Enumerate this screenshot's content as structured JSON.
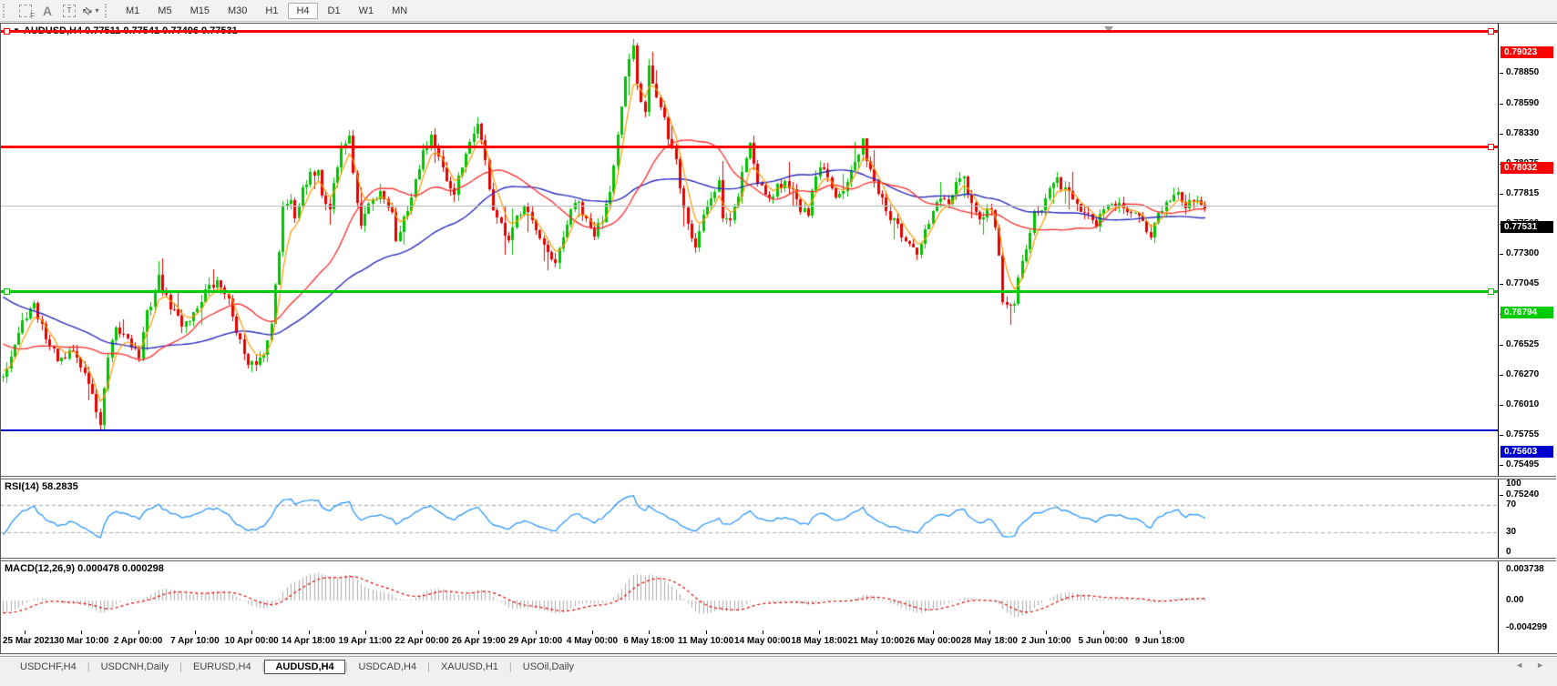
{
  "toolbar": {
    "tools": [
      {
        "id": "marquee-f",
        "label": "F"
      },
      {
        "id": "text-label",
        "label": "A"
      },
      {
        "id": "text-box",
        "label": "T"
      },
      {
        "id": "cursor",
        "label": "⇄",
        "caret": "▾"
      }
    ],
    "timeframes": [
      "M1",
      "M5",
      "M15",
      "M30",
      "H1",
      "H4",
      "D1",
      "W1",
      "MN"
    ],
    "active_timeframe": "H4"
  },
  "chart": {
    "title": "AUDUSD,H4 0.77511 0.77541 0.77496 0.77531",
    "symbol": "AUDUSD",
    "period": "H4",
    "ohlc": {
      "open": "0.77511",
      "high": "0.77541",
      "low": "0.77496",
      "close": "0.77531"
    }
  },
  "chart_data": {
    "type": "candlestick",
    "symbol": "AUDUSD",
    "timeframe": "H4",
    "title": "AUDUSD,H4 0.77511 0.77541 0.77496 0.77531",
    "candle_count": 310,
    "up_color": "#00C400",
    "down_color": "#E60000",
    "price_axis_ticks": [
      "0.78850",
      "0.78590",
      "0.78330",
      "0.78075",
      "0.77815",
      "0.77560",
      "0.77300",
      "0.77045",
      "0.76790",
      "0.76525",
      "0.76270",
      "0.76010",
      "0.75755",
      "0.75495",
      "0.75240"
    ],
    "price_range_top": 0.7907,
    "price_range_bottom": 0.75217,
    "levels": [
      {
        "label": "0.79023",
        "price": 0.79023,
        "color": "#FF0000",
        "thickness": 3,
        "marker_left": true,
        "marker_right": true
      },
      {
        "label": "0.78032",
        "price": 0.78032,
        "color": "#FF0000",
        "thickness": 3,
        "marker_left": false,
        "marker_right": true
      },
      {
        "label": "0.76794",
        "price": 0.76794,
        "color": "#00CC00",
        "thickness": 3,
        "marker_left": true,
        "marker_right": true
      },
      {
        "label": "0.75603",
        "price": 0.75603,
        "color": "#0000CC",
        "thickness": 2,
        "marker_left": false,
        "marker_right": false
      }
    ],
    "current_price": {
      "label": "0.77531",
      "price": 0.77531,
      "label_bg": "#000000",
      "line_color": "#C0C0C0"
    },
    "moving_averages": [
      {
        "name": "fast",
        "type": "ema",
        "period": 5,
        "color": "#FF9900"
      },
      {
        "name": "medium",
        "type": "sma",
        "period": 25,
        "color": "#FF2A2A"
      },
      {
        "name": "slow",
        "type": "sma",
        "period": 60,
        "color": "#2B2BC0"
      }
    ],
    "price_path_anchors": [
      [
        0,
        0.761
      ],
      [
        2,
        0.7625
      ],
      [
        6,
        0.766
      ],
      [
        8,
        0.7666
      ],
      [
        12,
        0.7633
      ],
      [
        15,
        0.7618
      ],
      [
        18,
        0.7629
      ],
      [
        22,
        0.7602
      ],
      [
        25,
        0.7566
      ],
      [
        27,
        0.7621
      ],
      [
        29,
        0.7645
      ],
      [
        32,
        0.7641
      ],
      [
        35,
        0.7624
      ],
      [
        37,
        0.766
      ],
      [
        40,
        0.7691
      ],
      [
        42,
        0.7672
      ],
      [
        46,
        0.7652
      ],
      [
        49,
        0.766
      ],
      [
        52,
        0.768
      ],
      [
        55,
        0.7686
      ],
      [
        57,
        0.7681
      ],
      [
        60,
        0.7648
      ],
      [
        63,
        0.7613
      ],
      [
        65,
        0.7619
      ],
      [
        67,
        0.7625
      ],
      [
        69,
        0.7656
      ],
      [
        71,
        0.7711
      ],
      [
        72,
        0.7754
      ],
      [
        74,
        0.7759
      ],
      [
        75,
        0.7746
      ],
      [
        77,
        0.7764
      ],
      [
        79,
        0.7777
      ],
      [
        81,
        0.7786
      ],
      [
        82,
        0.7761
      ],
      [
        84,
        0.7751
      ],
      [
        85,
        0.7773
      ],
      [
        87,
        0.78
      ],
      [
        89,
        0.7814
      ],
      [
        90,
        0.7777
      ],
      [
        92,
        0.7736
      ],
      [
        94,
        0.7754
      ],
      [
        96,
        0.7761
      ],
      [
        97,
        0.7767
      ],
      [
        100,
        0.7746
      ],
      [
        101,
        0.7725
      ],
      [
        104,
        0.775
      ],
      [
        106,
        0.7777
      ],
      [
        108,
        0.78
      ],
      [
        110,
        0.7814
      ],
      [
        112,
        0.7793
      ],
      [
        114,
        0.7771
      ],
      [
        116,
        0.7765
      ],
      [
        118,
        0.7785
      ],
      [
        120,
        0.7804
      ],
      [
        122,
        0.7826
      ],
      [
        124,
        0.7789
      ],
      [
        126,
        0.775
      ],
      [
        128,
        0.7734
      ],
      [
        130,
        0.772
      ],
      [
        132,
        0.7742
      ],
      [
        134,
        0.7756
      ],
      [
        135,
        0.775
      ],
      [
        137,
        0.773
      ],
      [
        139,
        0.7715
      ],
      [
        142,
        0.7701
      ],
      [
        144,
        0.7725
      ],
      [
        146,
        0.775
      ],
      [
        148,
        0.7754
      ],
      [
        150,
        0.7738
      ],
      [
        152,
        0.7728
      ],
      [
        154,
        0.7742
      ],
      [
        156,
        0.7769
      ],
      [
        158,
        0.7812
      ],
      [
        160,
        0.7859
      ],
      [
        162,
        0.789
      ],
      [
        163,
        0.7855
      ],
      [
        165,
        0.7835
      ],
      [
        166,
        0.7876
      ],
      [
        168,
        0.7847
      ],
      [
        170,
        0.7828
      ],
      [
        171,
        0.7808
      ],
      [
        173,
        0.779
      ],
      [
        175,
        0.775
      ],
      [
        177,
        0.7725
      ],
      [
        178,
        0.7717
      ],
      [
        180,
        0.7746
      ],
      [
        182,
        0.7761
      ],
      [
        184,
        0.7775
      ],
      [
        185,
        0.7744
      ],
      [
        187,
        0.774
      ],
      [
        189,
        0.7761
      ],
      [
        190,
        0.7785
      ],
      [
        192,
        0.781
      ],
      [
        193,
        0.7785
      ],
      [
        195,
        0.7767
      ],
      [
        197,
        0.7759
      ],
      [
        199,
        0.7769
      ],
      [
        201,
        0.7775
      ],
      [
        203,
        0.7765
      ],
      [
        205,
        0.7751
      ],
      [
        207,
        0.7742
      ],
      [
        208,
        0.7765
      ],
      [
        210,
        0.7785
      ],
      [
        212,
        0.7777
      ],
      [
        214,
        0.7764
      ],
      [
        216,
        0.7769
      ],
      [
        218,
        0.7782
      ],
      [
        220,
        0.7796
      ],
      [
        221,
        0.7806
      ],
      [
        223,
        0.7785
      ],
      [
        225,
        0.7765
      ],
      [
        227,
        0.7748
      ],
      [
        229,
        0.7738
      ],
      [
        231,
        0.7728
      ],
      [
        233,
        0.7717
      ],
      [
        235,
        0.7709
      ],
      [
        237,
        0.773
      ],
      [
        239,
        0.7748
      ],
      [
        241,
        0.7759
      ],
      [
        243,
        0.7754
      ],
      [
        245,
        0.7769
      ],
      [
        247,
        0.7775
      ],
      [
        249,
        0.7754
      ],
      [
        251,
        0.7738
      ],
      [
        252,
        0.7744
      ],
      [
        254,
        0.7751
      ],
      [
        256,
        0.7711
      ],
      [
        257,
        0.7672
      ],
      [
        259,
        0.7664
      ],
      [
        260,
        0.7668
      ],
      [
        261,
        0.7688
      ],
      [
        263,
        0.7719
      ],
      [
        265,
        0.7744
      ],
      [
        267,
        0.7751
      ],
      [
        269,
        0.7765
      ],
      [
        271,
        0.7775
      ],
      [
        273,
        0.7765
      ],
      [
        275,
        0.7758
      ],
      [
        277,
        0.7751
      ],
      [
        279,
        0.7742
      ],
      [
        281,
        0.7736
      ],
      [
        282,
        0.7746
      ],
      [
        285,
        0.7754
      ],
      [
        287,
        0.7758
      ],
      [
        289,
        0.7751
      ],
      [
        291,
        0.7744
      ],
      [
        293,
        0.7738
      ],
      [
        295,
        0.773
      ],
      [
        296,
        0.774
      ],
      [
        298,
        0.775
      ],
      [
        300,
        0.7756
      ],
      [
        302,
        0.7761
      ],
      [
        304,
        0.7754
      ],
      [
        306,
        0.7759
      ],
      [
        308,
        0.7756
      ],
      [
        309,
        0.7753
      ]
    ],
    "time_labels": [
      "25 Mar 2021",
      "30 Mar 10:00",
      "2 Apr 00:00",
      "7 Apr 10:00",
      "10 Apr 00:00",
      "14 Apr 18:00",
      "19 Apr 11:00",
      "22 Apr 00:00",
      "26 Apr 19:00",
      "29 Apr 10:00",
      "4 May 00:00",
      "6 May 18:00",
      "11 May 10:00",
      "14 May 00:00",
      "18 May 18:00",
      "21 May 10:00",
      "26 May 00:00",
      "28 May 18:00",
      "2 Jun 10:00",
      "5 Jun 00:00",
      "9 Jun 18:00"
    ],
    "rsi": {
      "period": 14,
      "value": "58.2835",
      "line_color": "#1E90FF",
      "overbought": 70,
      "oversold": 30,
      "axis_ticks": [
        "100",
        "70",
        "30",
        "0"
      ]
    },
    "macd": {
      "fast": 12,
      "slow": 26,
      "signal": 9,
      "value": "0.000478",
      "signal_value": "0.000298",
      "histogram_color": "#ADADAD",
      "signal_color": "#E00000",
      "axis_ticks": [
        "0.003738",
        "0.00",
        "-0.004299"
      ]
    }
  },
  "rsi": {
    "label": "RSI(14) 58.2835"
  },
  "macd": {
    "label": "MACD(12,26,9) 0.000478 0.000298"
  },
  "tabs": {
    "items": [
      "USDCHF,H4",
      "USDCNH,Daily",
      "EURUSD,H4",
      "AUDUSD,H4",
      "USDCAD,H4",
      "XAUUSD,H1",
      "USOil,Daily"
    ],
    "active": "AUDUSD,H4"
  }
}
